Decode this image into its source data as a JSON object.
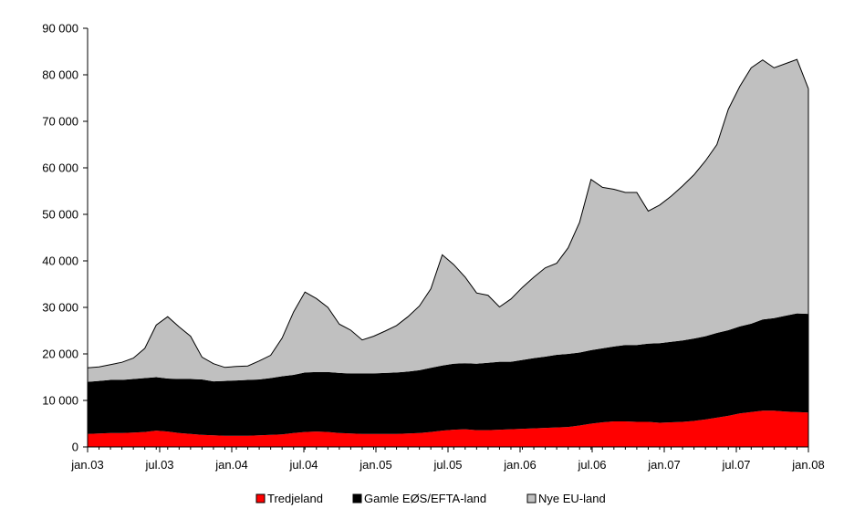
{
  "chart_data": {
    "type": "area",
    "stacked": true,
    "title": "",
    "xlabel": "",
    "ylabel": "",
    "ylim": [
      0,
      90000
    ],
    "y_ticks": [
      0,
      10000,
      20000,
      30000,
      40000,
      50000,
      60000,
      70000,
      80000,
      90000
    ],
    "y_tick_labels": [
      "0",
      "10 000",
      "20 000",
      "30 000",
      "40 000",
      "50 000",
      "60 000",
      "70 000",
      "80 000",
      "90 000"
    ],
    "x_tick_labels": [
      "jan.03",
      "jul.03",
      "jan.04",
      "jul.04",
      "jan.05",
      "jul.05",
      "jan.06",
      "jul.06",
      "jan.07",
      "jul.07",
      "jan.08"
    ],
    "x_start": "2003-01",
    "legend_position": "bottom",
    "grid": false,
    "series": [
      {
        "name": "Tredjeland",
        "color": "#ff0000",
        "values": [
          2800,
          2900,
          3000,
          3000,
          3100,
          3200,
          3500,
          3300,
          3000,
          2800,
          2600,
          2500,
          2400,
          2400,
          2400,
          2500,
          2600,
          2700,
          3000,
          3200,
          3300,
          3200,
          3000,
          2900,
          2800,
          2800,
          2800,
          2800,
          2900,
          3000,
          3200,
          3500,
          3700,
          3800,
          3600,
          3600,
          3700,
          3800,
          3900,
          4000,
          4100,
          4200,
          4300,
          4600,
          5000,
          5300,
          5500,
          5500,
          5400,
          5400,
          5200,
          5300,
          5400,
          5600,
          5900,
          6300,
          6700,
          7200,
          7500,
          7800,
          7800,
          7600,
          7500,
          7400
        ]
      },
      {
        "name": "Gamle EØS/EFTA-land",
        "color": "#000000",
        "values": [
          11200,
          11300,
          11400,
          11400,
          11500,
          11600,
          11500,
          11400,
          11600,
          11800,
          11900,
          11600,
          11800,
          11900,
          12000,
          12000,
          12200,
          12500,
          12500,
          12800,
          12800,
          12900,
          12900,
          12900,
          13000,
          13000,
          13100,
          13200,
          13300,
          13500,
          13800,
          14000,
          14200,
          14200,
          14300,
          14500,
          14600,
          14500,
          14800,
          15100,
          15300,
          15600,
          15700,
          15700,
          15800,
          15900,
          16100,
          16400,
          16500,
          16800,
          17100,
          17300,
          17500,
          17700,
          17900,
          18200,
          18400,
          18700,
          19000,
          19600,
          19900,
          20600,
          21200,
          21200
        ]
      },
      {
        "name": "Nye EU-land",
        "color": "#c0c0c0",
        "values": [
          3000,
          3000,
          3300,
          3800,
          4500,
          6400,
          11200,
          13300,
          11200,
          9200,
          4800,
          3800,
          2900,
          3000,
          3000,
          4000,
          4900,
          8200,
          13500,
          17300,
          15800,
          13900,
          10500,
          9300,
          7200,
          8000,
          9000,
          10100,
          11800,
          13800,
          17000,
          23800,
          21300,
          18500,
          15200,
          14500,
          11800,
          13500,
          15600,
          17400,
          19100,
          19700,
          22800,
          28000,
          36700,
          34600,
          33800,
          32800,
          32800,
          28500,
          29700,
          31300,
          33200,
          35200,
          37700,
          40500,
          47500,
          51600,
          55000,
          55800,
          53800,
          54200,
          54600,
          48400
        ]
      }
    ]
  }
}
